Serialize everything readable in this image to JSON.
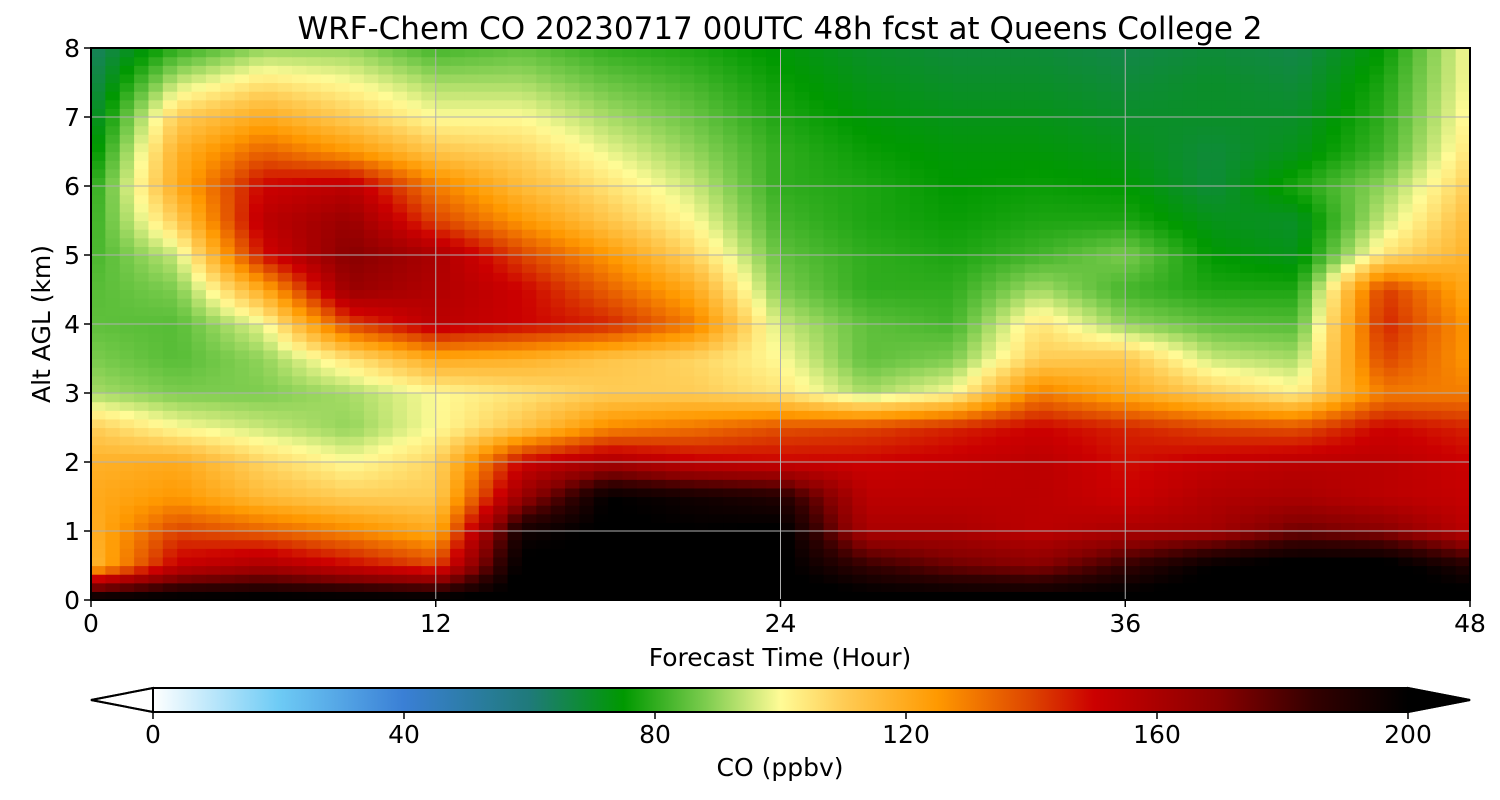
{
  "chart_data": {
    "type": "heatmap",
    "title": "WRF-Chem CO  20230717 00UTC 48h fcst at Queens College 2",
    "xlabel": "Forecast Time (Hour)",
    "ylabel": "Alt AGL (km)",
    "xlim": [
      0,
      48
    ],
    "ylim": [
      0,
      8
    ],
    "x_ticks": [
      "0",
      "12",
      "24",
      "36",
      "48"
    ],
    "y_ticks": [
      "0",
      "1",
      "2",
      "3",
      "4",
      "5",
      "6",
      "7",
      "8"
    ],
    "grid": true,
    "colorbar": {
      "label": "CO  (ppbv)",
      "ticks": [
        "0",
        "40",
        "80",
        "120",
        "160",
        "200"
      ],
      "range": [
        0,
        200
      ],
      "extend": "both",
      "color_stops": [
        {
          "value": 0,
          "color": "#ffffff"
        },
        {
          "value": 20,
          "color": "#6ecbf5"
        },
        {
          "value": 40,
          "color": "#3a7fd5"
        },
        {
          "value": 60,
          "color": "#1f7a7a"
        },
        {
          "value": 75,
          "color": "#009900"
        },
        {
          "value": 88,
          "color": "#7ccc4e"
        },
        {
          "value": 100,
          "color": "#fffb96"
        },
        {
          "value": 110,
          "color": "#ffcc55"
        },
        {
          "value": 125,
          "color": "#ff9900"
        },
        {
          "value": 140,
          "color": "#dd4400"
        },
        {
          "value": 150,
          "color": "#cc0000"
        },
        {
          "value": 170,
          "color": "#880000"
        },
        {
          "value": 185,
          "color": "#330000"
        },
        {
          "value": 200,
          "color": "#000000"
        }
      ]
    },
    "hours": [
      0,
      3,
      6,
      9,
      12,
      15,
      18,
      21,
      24,
      27,
      30,
      33,
      36,
      39,
      42,
      45,
      48
    ],
    "altitudes_km": [
      0,
      0.5,
      1,
      1.5,
      2,
      2.5,
      3,
      3.5,
      4,
      4.5,
      5,
      5.5,
      6,
      6.5,
      7,
      7.5,
      8
    ],
    "values_ppbv": [
      [
        205,
        205,
        205,
        205,
        205,
        205,
        205,
        205,
        205,
        205,
        205,
        205,
        205,
        205,
        205,
        205,
        205
      ],
      [
        115,
        152,
        160,
        150,
        140,
        202,
        202,
        202,
        202,
        185,
        175,
        170,
        185,
        200,
        205,
        205,
        190
      ],
      [
        118,
        140,
        135,
        128,
        120,
        195,
        202,
        200,
        202,
        160,
        160,
        155,
        160,
        162,
        175,
        170,
        155
      ],
      [
        120,
        125,
        115,
        110,
        110,
        165,
        200,
        195,
        190,
        155,
        155,
        155,
        150,
        158,
        160,
        155,
        152
      ],
      [
        118,
        120,
        108,
        100,
        108,
        150,
        160,
        152,
        150,
        150,
        152,
        155,
        148,
        152,
        155,
        155,
        150
      ],
      [
        110,
        100,
        95,
        90,
        100,
        112,
        128,
        132,
        138,
        140,
        145,
        150,
        145,
        140,
        138,
        150,
        145
      ],
      [
        92,
        88,
        88,
        92,
        100,
        105,
        110,
        110,
        105,
        92,
        100,
        130,
        120,
        110,
        102,
        130,
        130
      ],
      [
        88,
        84,
        90,
        105,
        120,
        118,
        112,
        108,
        100,
        85,
        88,
        110,
        112,
        95,
        92,
        140,
        125
      ],
      [
        85,
        84,
        98,
        140,
        155,
        150,
        145,
        130,
        95,
        85,
        82,
        105,
        90,
        85,
        84,
        145,
        125
      ],
      [
        84,
        88,
        120,
        165,
        158,
        150,
        135,
        120,
        88,
        80,
        80,
        92,
        82,
        78,
        78,
        142,
        120
      ],
      [
        82,
        95,
        148,
        170,
        160,
        140,
        125,
        108,
        85,
        80,
        78,
        82,
        88,
        75,
        72,
        105,
        118
      ],
      [
        80,
        110,
        155,
        165,
        140,
        125,
        112,
        100,
        82,
        78,
        76,
        78,
        78,
        72,
        70,
        95,
        115
      ],
      [
        78,
        120,
        150,
        155,
        130,
        115,
        105,
        95,
        80,
        78,
        75,
        76,
        75,
        68,
        78,
        90,
        110
      ],
      [
        72,
        118,
        135,
        125,
        112,
        108,
        98,
        90,
        80,
        76,
        74,
        74,
        72,
        68,
        72,
        82,
        105
      ],
      [
        68,
        110,
        120,
        110,
        100,
        100,
        92,
        86,
        78,
        74,
        72,
        72,
        70,
        70,
        70,
        80,
        102
      ],
      [
        65,
        95,
        105,
        100,
        92,
        92,
        86,
        82,
        76,
        72,
        70,
        70,
        68,
        70,
        68,
        78,
        100
      ],
      [
        63,
        80,
        90,
        90,
        82,
        85,
        80,
        78,
        74,
        70,
        68,
        68,
        66,
        68,
        66,
        75,
        100
      ]
    ]
  }
}
